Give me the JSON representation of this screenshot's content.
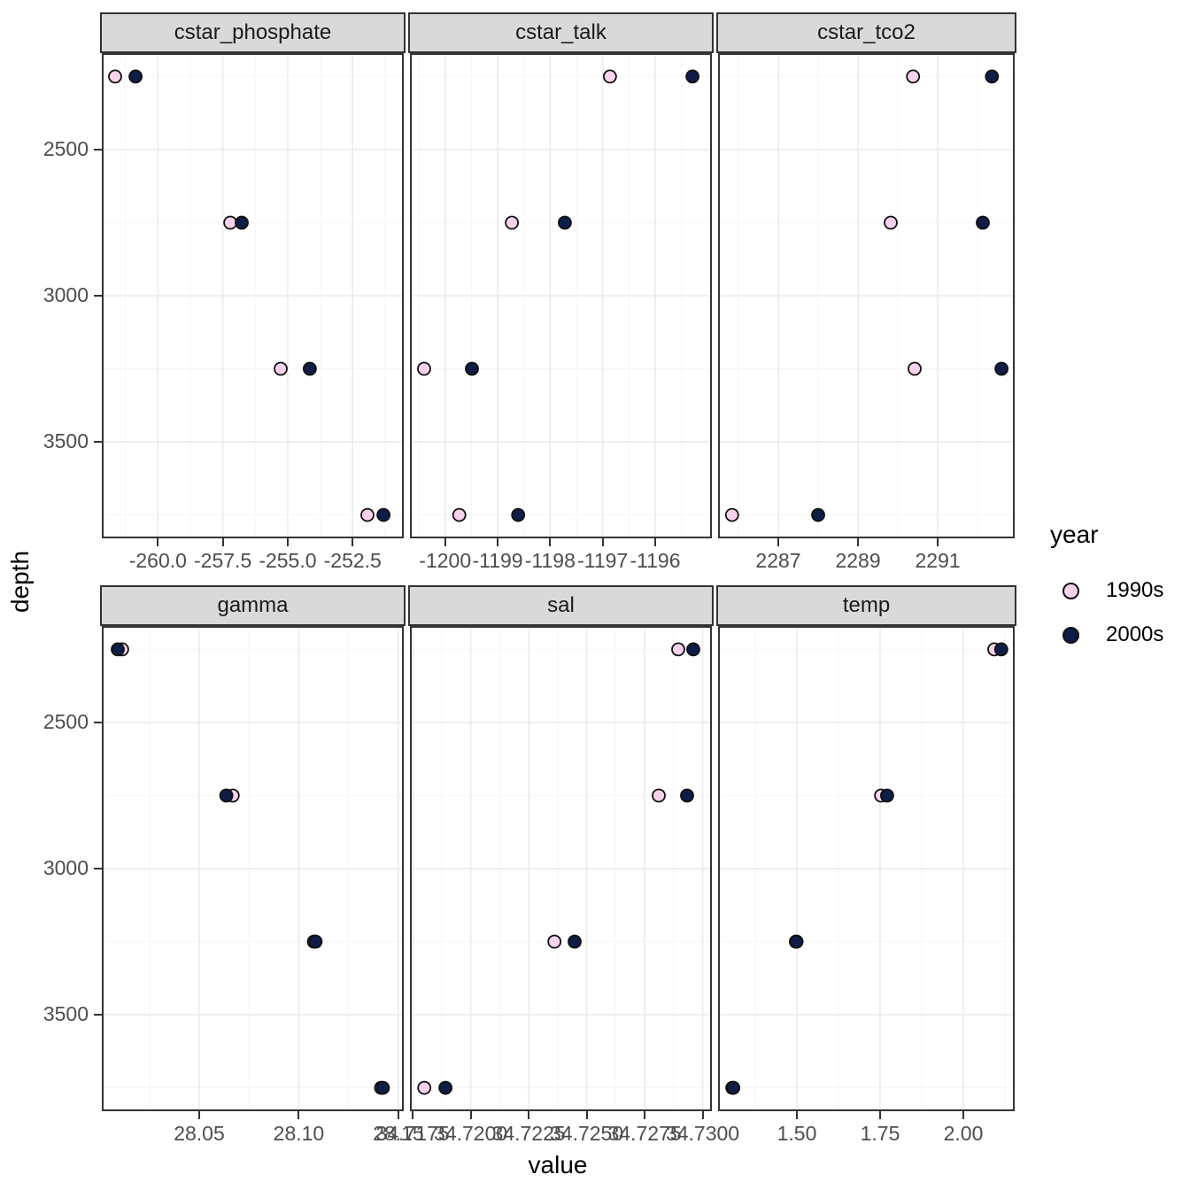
{
  "title_x": "value",
  "title_y": "depth",
  "legend": {
    "title": "year",
    "items": [
      {
        "label": "1990s",
        "color": "#F8D2EC"
      },
      {
        "label": "2000s",
        "color": "#0E1D47"
      }
    ]
  },
  "style": {
    "background": "#FFFFFF",
    "strip_bg": "#D9D9D9",
    "panel_bg": "#FFFFFF",
    "panel_border": "#333333",
    "grid_major": "#EBEBEB",
    "grid_minor": "#F6F6F6",
    "tick_mark": "#333333",
    "tick_text": "#4D4D4D",
    "point_stroke": "#101010",
    "point_radius": 7
  },
  "chart_data": {
    "type": "scatter",
    "facet_titles": [
      "cstar_phosphate",
      "cstar_talk",
      "cstar_tco2",
      "gamma",
      "sal",
      "temp"
    ],
    "xlabel": "value",
    "ylabel": "depth",
    "series_names": [
      "1990s",
      "2000s"
    ],
    "depths": [
      2250,
      2750,
      3250,
      3750
    ],
    "y_axis": {
      "ticks": [
        2500,
        3000,
        3500
      ],
      "tick_labels": [
        "2500",
        "3000",
        "3500"
      ],
      "minor": [
        2250,
        2750,
        3250,
        3750
      ],
      "domain": [
        2170,
        3830
      ],
      "reversed": true
    },
    "facets": [
      {
        "name": "cstar_phosphate",
        "x_domain": [
          -262.16,
          -250.53
        ],
        "x_ticks": [
          -260.0,
          -257.5,
          -255.0,
          -252.5
        ],
        "x_tick_labels": [
          "-260.0",
          "-257.5",
          "-255.0",
          "-252.5"
        ],
        "series": [
          {
            "name": "1990s",
            "values": [
              -261.65,
              -257.21,
              -255.27,
              -251.93
            ]
          },
          {
            "name": "2000s",
            "values": [
              -260.86,
              -256.77,
              -254.15,
              -251.31
            ]
          }
        ]
      },
      {
        "name": "cstar_talk",
        "x_domain": [
          -1200.67,
          -1194.92
        ],
        "x_ticks": [
          -1200,
          -1199,
          -1198,
          -1197,
          -1196
        ],
        "x_tick_labels": [
          "-1200",
          "-1199",
          "-1198",
          "-1197",
          "-1196"
        ],
        "series": [
          {
            "name": "1990s",
            "values": [
              -1196.86,
              -1198.73,
              -1200.4,
              -1199.73
            ]
          },
          {
            "name": "2000s",
            "values": [
              -1195.29,
              -1197.72,
              -1199.49,
              -1198.61
            ]
          }
        ]
      },
      {
        "name": "cstar_tco2",
        "x_domain": [
          2285.49,
          2292.93
        ],
        "x_ticks": [
          2287,
          2289,
          2291
        ],
        "x_tick_labels": [
          "2287",
          "2289",
          "2291"
        ],
        "series": [
          {
            "name": "1990s",
            "values": [
              2290.38,
              2289.82,
              2290.42,
              2285.84
            ]
          },
          {
            "name": "2000s",
            "values": [
              2292.36,
              2292.13,
              2292.6,
              2288.0
            ]
          }
        ]
      },
      {
        "name": "gamma",
        "x_domain": [
          28.0011,
          28.1527
        ],
        "x_ticks": [
          28.05,
          28.1,
          28.15
        ],
        "x_tick_labels": [
          "28.05",
          "28.10",
          "28.15"
        ],
        "series": [
          {
            "name": "1990s",
            "values": [
              28.0113,
              28.0668,
              28.1076,
              28.1413
            ]
          },
          {
            "name": "2000s",
            "values": [
              28.0091,
              28.0636,
              28.1084,
              28.1422
            ]
          }
        ]
      },
      {
        "name": "sal",
        "x_domain": [
          34.71738,
          34.7304
        ],
        "x_ticks": [
          34.7175,
          34.72,
          34.7225,
          34.725,
          34.7275,
          34.73
        ],
        "x_tick_labels": [
          "34.7175",
          "34.7200",
          "34.7225",
          "34.7250",
          "34.7275",
          "34.7300"
        ],
        "series": [
          {
            "name": "1990s",
            "values": [
              34.72895,
              34.72811,
              34.72361,
              34.718
            ]
          },
          {
            "name": "2000s",
            "values": [
              34.7296,
              34.72933,
              34.72448,
              34.71891
            ]
          }
        ]
      },
      {
        "name": "temp",
        "x_domain": [
          1.2633,
          2.1543
        ],
        "x_ticks": [
          1.5,
          1.75,
          2.0
        ],
        "x_tick_labels": [
          "1.50",
          "1.75",
          "2.00"
        ],
        "series": [
          {
            "name": "1990s",
            "values": [
              2.093,
              1.753,
              1.497,
              1.306
            ]
          },
          {
            "name": "2000s",
            "values": [
              2.114,
              1.771,
              1.499,
              1.309
            ]
          }
        ]
      }
    ]
  }
}
